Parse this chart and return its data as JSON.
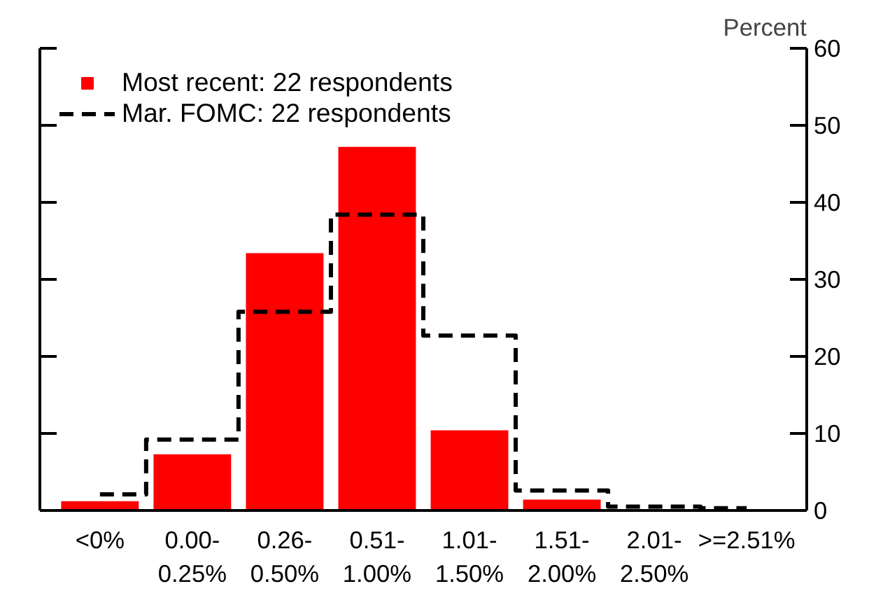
{
  "chart_data": {
    "type": "bar",
    "categories": [
      "<0%",
      "0.00-\n0.25%",
      "0.26-\n0.50%",
      "0.51-\n1.00%",
      "1.01-\n1.50%",
      "1.51-\n2.00%",
      "2.01-\n2.50%",
      ">=2.51%"
    ],
    "series": [
      {
        "name": "Most recent: 22 respondents",
        "color": "#ff0000",
        "values": [
          1.2,
          7.3,
          33.4,
          47.2,
          10.4,
          1.4,
          0,
          0
        ]
      },
      {
        "name": "Mar. FOMC: 22 respondents",
        "type": "step",
        "color": "#000000",
        "line_style": "dashed",
        "values": [
          2.1,
          9.2,
          25.8,
          38.4,
          22.7,
          2.6,
          0.5,
          0.3
        ]
      }
    ],
    "ylabel": "Percent",
    "ylim": [
      0,
      60
    ],
    "yticks": [
      0,
      10,
      20,
      30,
      40,
      50,
      60
    ],
    "grid": false,
    "legend": "top left"
  }
}
